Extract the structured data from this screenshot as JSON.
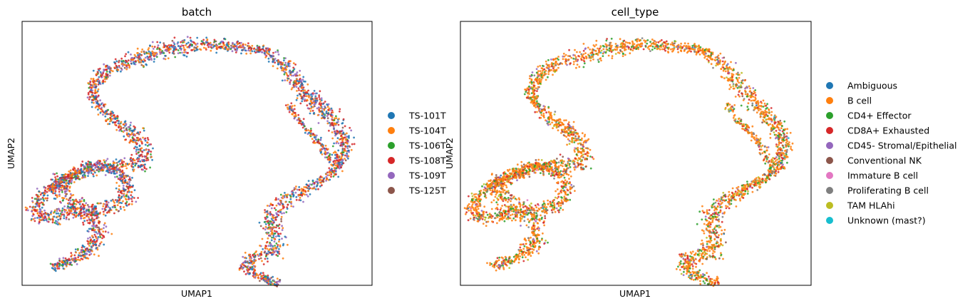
{
  "chart_data": [
    {
      "type": "scatter",
      "title": "batch",
      "xlabel": "UMAP1",
      "ylabel": "UMAP2",
      "grid": false,
      "legend_placement": "right",
      "ticks": "none",
      "xlim": [
        0,
        100
      ],
      "ylim": [
        0,
        100
      ],
      "categories": [
        "TS-101T",
        "TS-104T",
        "TS-106T",
        "TS-108T",
        "TS-109T",
        "TS-125T"
      ],
      "colors": [
        "#1f77b4",
        "#ff7f0e",
        "#2ca02c",
        "#d62728",
        "#9467bd",
        "#8c564b"
      ],
      "weights": [
        0.22,
        0.24,
        0.06,
        0.26,
        0.18,
        0.04
      ],
      "pointsPerBranch": 900,
      "curve_points": [
        [
          8.5,
          7
        ],
        [
          13,
          9
        ],
        [
          18,
          12
        ],
        [
          21,
          16
        ],
        [
          22,
          21
        ],
        [
          21,
          25
        ],
        [
          18,
          29
        ],
        [
          13,
          32
        ],
        [
          11,
          35
        ],
        [
          10,
          39
        ],
        [
          14,
          41
        ],
        [
          18,
          44
        ],
        [
          21,
          46
        ],
        [
          24,
          45
        ],
        [
          27,
          43
        ],
        [
          29,
          41
        ],
        [
          30,
          39
        ],
        [
          30,
          35
        ],
        [
          28,
          31
        ],
        [
          25,
          29
        ],
        [
          19,
          28
        ],
        [
          13,
          27
        ],
        [
          9,
          26
        ],
        [
          6,
          25
        ],
        [
          4,
          27
        ],
        [
          3.5,
          31
        ],
        [
          5,
          33
        ],
        [
          8,
          37
        ],
        [
          12,
          40
        ],
        [
          17,
          43
        ],
        [
          22,
          44
        ],
        [
          26,
          45
        ],
        [
          30,
          46
        ],
        [
          33,
          45
        ],
        [
          35,
          47
        ],
        [
          35,
          52
        ],
        [
          33,
          56
        ],
        [
          29,
          60
        ],
        [
          25,
          64
        ],
        [
          22,
          68
        ],
        [
          20,
          72
        ],
        [
          21,
          77
        ],
        [
          23,
          80
        ],
        [
          26,
          83
        ],
        [
          31,
          85
        ],
        [
          37,
          88
        ],
        [
          43,
          90
        ],
        [
          50,
          91
        ],
        [
          56,
          91
        ],
        [
          62,
          90
        ],
        [
          69,
          89
        ],
        [
          73,
          86
        ],
        [
          76,
          82
        ],
        [
          78,
          78
        ],
        [
          80,
          74
        ],
        [
          83,
          70
        ],
        [
          86,
          66
        ],
        [
          89,
          62
        ],
        [
          91,
          58
        ],
        [
          92,
          54
        ],
        [
          92,
          50
        ],
        [
          91,
          46
        ],
        [
          89,
          43
        ],
        [
          86,
          40
        ],
        [
          82,
          37
        ],
        [
          78,
          34
        ],
        [
          75,
          32
        ],
        [
          73,
          29
        ],
        [
          71,
          26
        ],
        [
          71,
          22
        ],
        [
          72,
          18
        ],
        [
          73,
          14
        ],
        [
          70,
          12
        ],
        [
          66,
          11
        ],
        [
          64,
          9
        ],
        [
          64,
          6
        ],
        [
          67,
          4
        ],
        [
          70,
          2
        ],
        [
          74,
          1
        ]
      ],
      "tail_points": [
        [
          76,
          69
        ],
        [
          78,
          64
        ],
        [
          81,
          60
        ],
        [
          84,
          56
        ],
        [
          86,
          52
        ],
        [
          88,
          48
        ],
        [
          89,
          45
        ]
      ]
    },
    {
      "type": "scatter",
      "title": "cell_type",
      "xlabel": "UMAP1",
      "ylabel": "UMAP2",
      "grid": false,
      "legend_placement": "right",
      "ticks": "none",
      "xlim": [
        0,
        100
      ],
      "ylim": [
        0,
        100
      ],
      "categories": [
        "Ambiguous",
        "B cell",
        "CD4+ Effector",
        "CD8A+ Exhausted",
        "CD45- Stromal/Epithelial",
        "Conventional NK",
        "Immature B cell",
        "Proliferating B cell",
        "TAM HLAhi",
        "Unknown (mast?)"
      ],
      "colors": [
        "#1f77b4",
        "#ff7f0e",
        "#2ca02c",
        "#d62728",
        "#9467bd",
        "#8c564b",
        "#e377c2",
        "#7f7f7f",
        "#bcbd22",
        "#17becf"
      ],
      "weights": [
        0.005,
        0.56,
        0.13,
        0.11,
        0.045,
        0.035,
        0.005,
        0.05,
        0.055,
        0.005
      ],
      "pointsPerBranch": 900,
      "curve_points": [
        [
          8.5,
          7
        ],
        [
          13,
          9
        ],
        [
          18,
          12
        ],
        [
          21,
          16
        ],
        [
          22,
          21
        ],
        [
          21,
          25
        ],
        [
          18,
          29
        ],
        [
          13,
          32
        ],
        [
          11,
          35
        ],
        [
          10,
          39
        ],
        [
          14,
          41
        ],
        [
          18,
          44
        ],
        [
          21,
          46
        ],
        [
          24,
          45
        ],
        [
          27,
          43
        ],
        [
          29,
          41
        ],
        [
          30,
          39
        ],
        [
          30,
          35
        ],
        [
          28,
          31
        ],
        [
          25,
          29
        ],
        [
          19,
          28
        ],
        [
          13,
          27
        ],
        [
          9,
          26
        ],
        [
          6,
          25
        ],
        [
          4,
          27
        ],
        [
          3.5,
          31
        ],
        [
          5,
          33
        ],
        [
          8,
          37
        ],
        [
          12,
          40
        ],
        [
          17,
          43
        ],
        [
          22,
          44
        ],
        [
          26,
          45
        ],
        [
          30,
          46
        ],
        [
          33,
          45
        ],
        [
          35,
          47
        ],
        [
          35,
          52
        ],
        [
          33,
          56
        ],
        [
          29,
          60
        ],
        [
          25,
          64
        ],
        [
          22,
          68
        ],
        [
          20,
          72
        ],
        [
          21,
          77
        ],
        [
          23,
          80
        ],
        [
          26,
          83
        ],
        [
          31,
          85
        ],
        [
          37,
          88
        ],
        [
          43,
          90
        ],
        [
          50,
          91
        ],
        [
          56,
          91
        ],
        [
          62,
          90
        ],
        [
          69,
          89
        ],
        [
          73,
          86
        ],
        [
          76,
          82
        ],
        [
          78,
          78
        ],
        [
          80,
          74
        ],
        [
          83,
          70
        ],
        [
          86,
          66
        ],
        [
          89,
          62
        ],
        [
          91,
          58
        ],
        [
          92,
          54
        ],
        [
          92,
          50
        ],
        [
          91,
          46
        ],
        [
          89,
          43
        ],
        [
          86,
          40
        ],
        [
          82,
          37
        ],
        [
          78,
          34
        ],
        [
          75,
          32
        ],
        [
          73,
          29
        ],
        [
          71,
          26
        ],
        [
          71,
          22
        ],
        [
          72,
          18
        ],
        [
          73,
          14
        ],
        [
          70,
          12
        ],
        [
          66,
          11
        ],
        [
          64,
          9
        ],
        [
          64,
          6
        ],
        [
          67,
          4
        ],
        [
          70,
          2
        ],
        [
          74,
          1
        ]
      ],
      "tail_points": [
        [
          76,
          69
        ],
        [
          78,
          64
        ],
        [
          81,
          60
        ],
        [
          84,
          56
        ],
        [
          86,
          52
        ],
        [
          88,
          48
        ],
        [
          89,
          45
        ]
      ]
    }
  ]
}
